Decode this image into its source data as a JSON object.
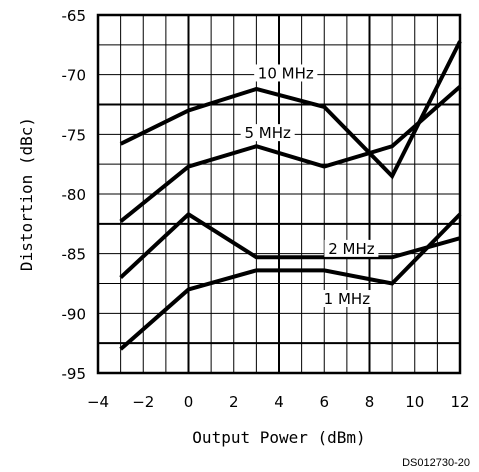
{
  "chart_data": {
    "type": "line",
    "xlabel": "Output Power (dBm)",
    "ylabel": "Distortion (dBc)",
    "xlim": [
      -4,
      12
    ],
    "ylim": [
      -95,
      -65
    ],
    "x_ticks": [
      -4,
      -2,
      0,
      2,
      4,
      6,
      8,
      10,
      12
    ],
    "y_ticks": [
      -65,
      -70,
      -75,
      -80,
      -85,
      -90,
      -95
    ],
    "x_tick_labels": [
      "−4",
      "−2",
      "0",
      "2",
      "4",
      "6",
      "8",
      "10",
      "12"
    ],
    "y_tick_labels": [
      "-65",
      "-70",
      "-75",
      "-80",
      "-85",
      "-90",
      "-95"
    ],
    "grid": true,
    "series": [
      {
        "name": "10 MHz",
        "x": [
          -3,
          0,
          3,
          6,
          9,
          12
        ],
        "y": [
          -75.8,
          -73.0,
          -71.2,
          -72.7,
          -78.5,
          -67.2
        ]
      },
      {
        "name": "5 MHz",
        "x": [
          -3,
          0,
          3,
          6,
          9,
          12
        ],
        "y": [
          -82.3,
          -77.7,
          -76.0,
          -77.7,
          -76.0,
          -71.0
        ]
      },
      {
        "name": "2 MHz",
        "x": [
          -3,
          0,
          3,
          6,
          9,
          12
        ],
        "y": [
          -87.0,
          -81.7,
          -85.3,
          -85.3,
          -85.3,
          -83.7
        ]
      },
      {
        "name": "1 MHz",
        "x": [
          -3,
          0,
          3,
          6,
          9,
          12
        ],
        "y": [
          -93.0,
          -88.0,
          -86.4,
          -86.4,
          -87.5,
          -81.7
        ]
      }
    ],
    "annotation": "DS012730-20"
  }
}
